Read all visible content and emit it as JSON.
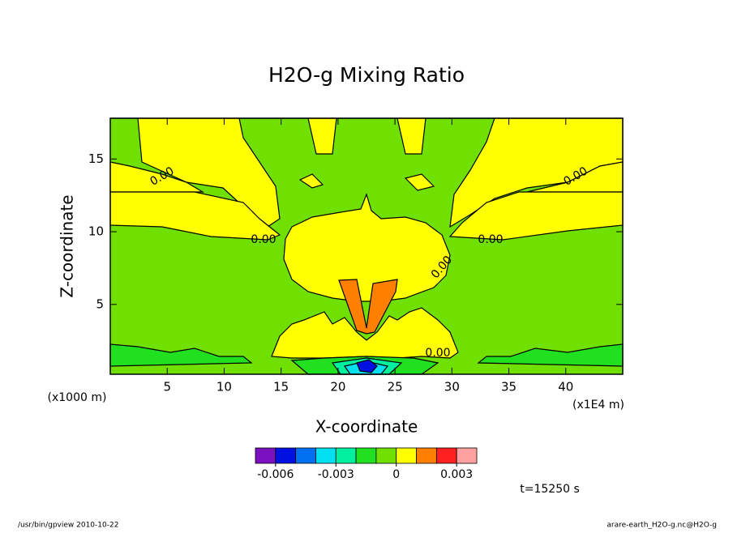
{
  "chart_data": {
    "type": "contour",
    "title": "H2O-g Mixing Ratio",
    "x_label": "X-coordinate",
    "y_label": "Z-coordinate",
    "x_unit_left": "(x1000 m)",
    "x_unit_right": "(x1E4 m)",
    "xlim": [
      0,
      45
    ],
    "xticks": [
      5,
      10,
      15,
      20,
      25,
      30,
      35,
      40
    ],
    "ylim": [
      0.2,
      17.8
    ],
    "yticks": [
      5,
      10,
      15
    ],
    "contour_labels": [
      "0.00",
      "0.00",
      "0.00",
      "0.00",
      "0.00",
      "0.00"
    ],
    "colorbar": {
      "colors": [
        "#7a10c0",
        "#0010e0",
        "#0070f0",
        "#00e0f0",
        "#00f0a0",
        "#20e020",
        "#70e000",
        "#ffff00",
        "#ff8000",
        "#ff2020",
        "#ffa0a0"
      ],
      "levels": [
        -0.007,
        -0.006,
        -0.005,
        -0.004,
        -0.003,
        -0.002,
        -0.001,
        0,
        0.001,
        0.002,
        0.003,
        0.004
      ],
      "ticks": [
        -0.006,
        -0.003,
        0,
        0.003
      ]
    },
    "time_label": "t=15250 s",
    "footer_left": "/usr/bin/gpview  2010-10-22",
    "footer_right": "arare-earth_H2O-g.nc@H2O-g"
  }
}
